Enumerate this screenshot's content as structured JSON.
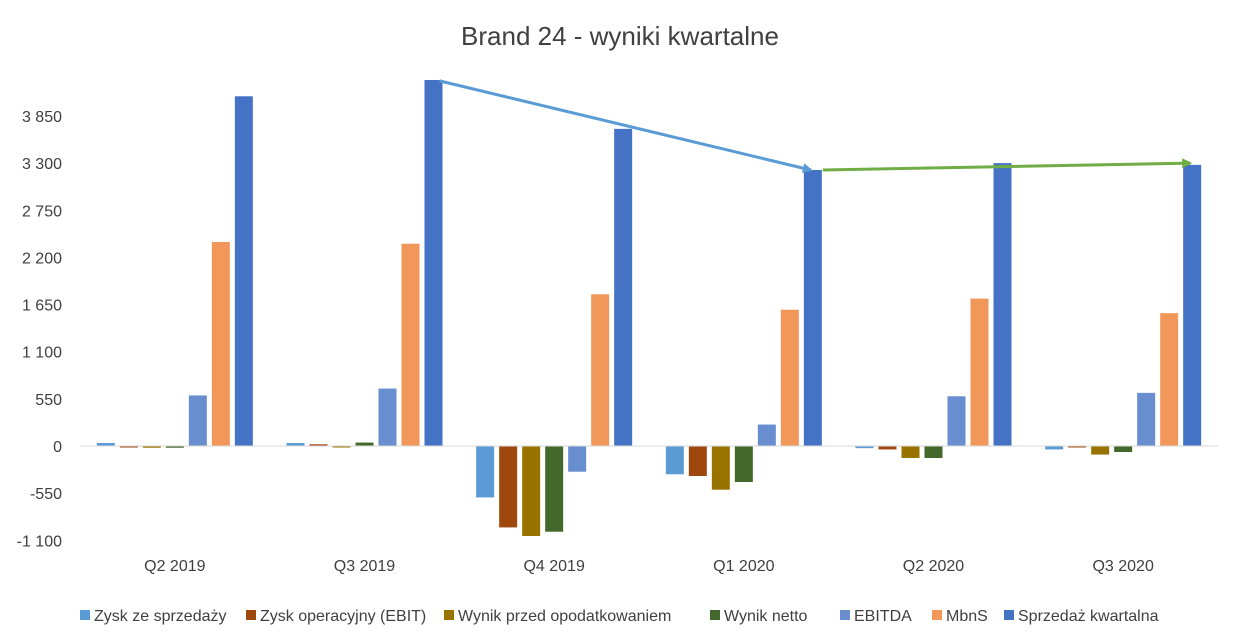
{
  "chart_data": {
    "type": "bar",
    "title": "Brand 24 - wyniki kwartalne",
    "xlabel": "",
    "ylabel": "",
    "categories": [
      "Q2 2019",
      "Q3 2019",
      "Q4 2019",
      "Q1 2020",
      "Q2 2020",
      "Q3 2020"
    ],
    "yticks": [
      -1100,
      -550,
      0,
      550,
      1100,
      1650,
      2200,
      2750,
      3300,
      3850
    ],
    "ytick_labels": [
      "-1 100",
      "-550",
      "0",
      "550",
      "1 100",
      "1 650",
      "2 200",
      "2 750",
      "3 300",
      "3 850"
    ],
    "ylim": [
      -1100,
      4400
    ],
    "grid": false,
    "legend_position": "bottom",
    "series": [
      {
        "name": "Zysk ze sprzedaży",
        "color": "#5B9BD5",
        "values": [
          35,
          35,
          -600,
          -330,
          -25,
          -40
        ]
      },
      {
        "name": "Zysk operacyjny (EBIT)",
        "color": "#9E480E",
        "values": [
          0,
          20,
          -950,
          -350,
          -40,
          0
        ]
      },
      {
        "name": "Wynik przed opodatkowaniem",
        "color": "#997300",
        "values": [
          -20,
          -15,
          -1050,
          -510,
          -140,
          -100
        ]
      },
      {
        "name": "Wynik netto",
        "color": "#43682B",
        "values": [
          -20,
          40,
          -1000,
          -420,
          -140,
          -70
        ]
      },
      {
        "name": "EBITDA",
        "color": "#698ED0",
        "values": [
          590,
          670,
          -300,
          250,
          580,
          620
        ]
      },
      {
        "name": "MbnS",
        "color": "#F1975A",
        "values": [
          2380,
          2360,
          1770,
          1590,
          1720,
          1550
        ]
      },
      {
        "name": "Sprzedaż kwartalna",
        "color": "#4472C4",
        "values": [
          4080,
          4270,
          3700,
          3220,
          3300,
          3280
        ]
      }
    ],
    "annotations": [
      {
        "type": "arrow",
        "color": "#5B9BD5",
        "from": {
          "x": "Q3 2019",
          "y": 4260
        },
        "to": {
          "x": "Q1 2020",
          "y": 3220
        }
      },
      {
        "type": "arrow",
        "color": "#70AD47",
        "from": {
          "x": "Q1 2020",
          "y": 3220
        },
        "to": {
          "x": "Q3 2020",
          "y": 3300
        }
      }
    ]
  }
}
